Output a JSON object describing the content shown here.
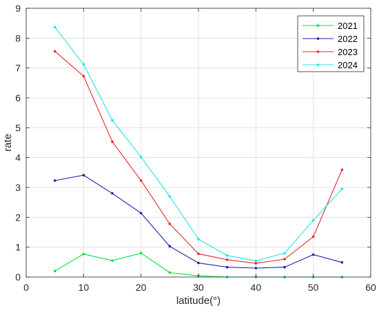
{
  "chart_data": {
    "type": "line",
    "xlabel": "latitude(°)",
    "ylabel": "rate",
    "xlim": [
      0,
      60
    ],
    "ylim": [
      0,
      9
    ],
    "xticks": [
      0,
      10,
      20,
      30,
      40,
      50,
      60
    ],
    "yticks": [
      0,
      1,
      2,
      3,
      4,
      5,
      6,
      7,
      8,
      9
    ],
    "grid": true,
    "legend_position": "top-right",
    "x": [
      5,
      10,
      15,
      20,
      25,
      30,
      35,
      40,
      45,
      50,
      55
    ],
    "series": [
      {
        "name": "2021",
        "color": "#00e03c",
        "values": [
          0.2,
          0.77,
          0.55,
          0.8,
          0.15,
          0.04,
          0.0,
          0.0,
          0.0,
          0.0,
          0.0
        ]
      },
      {
        "name": "2022",
        "color": "#1f1fb4",
        "values": [
          3.23,
          3.41,
          2.8,
          2.14,
          1.03,
          0.47,
          0.33,
          0.3,
          0.33,
          0.75,
          0.49
        ]
      },
      {
        "name": "2023",
        "color": "#e8262c",
        "values": [
          7.56,
          6.73,
          4.53,
          3.23,
          1.78,
          0.78,
          0.58,
          0.46,
          0.6,
          1.35,
          3.59
        ]
      },
      {
        "name": "2024",
        "color": "#18e6e6",
        "values": [
          8.37,
          7.12,
          5.25,
          4.02,
          2.7,
          1.27,
          0.72,
          0.54,
          0.8,
          1.9,
          2.95
        ]
      }
    ]
  }
}
